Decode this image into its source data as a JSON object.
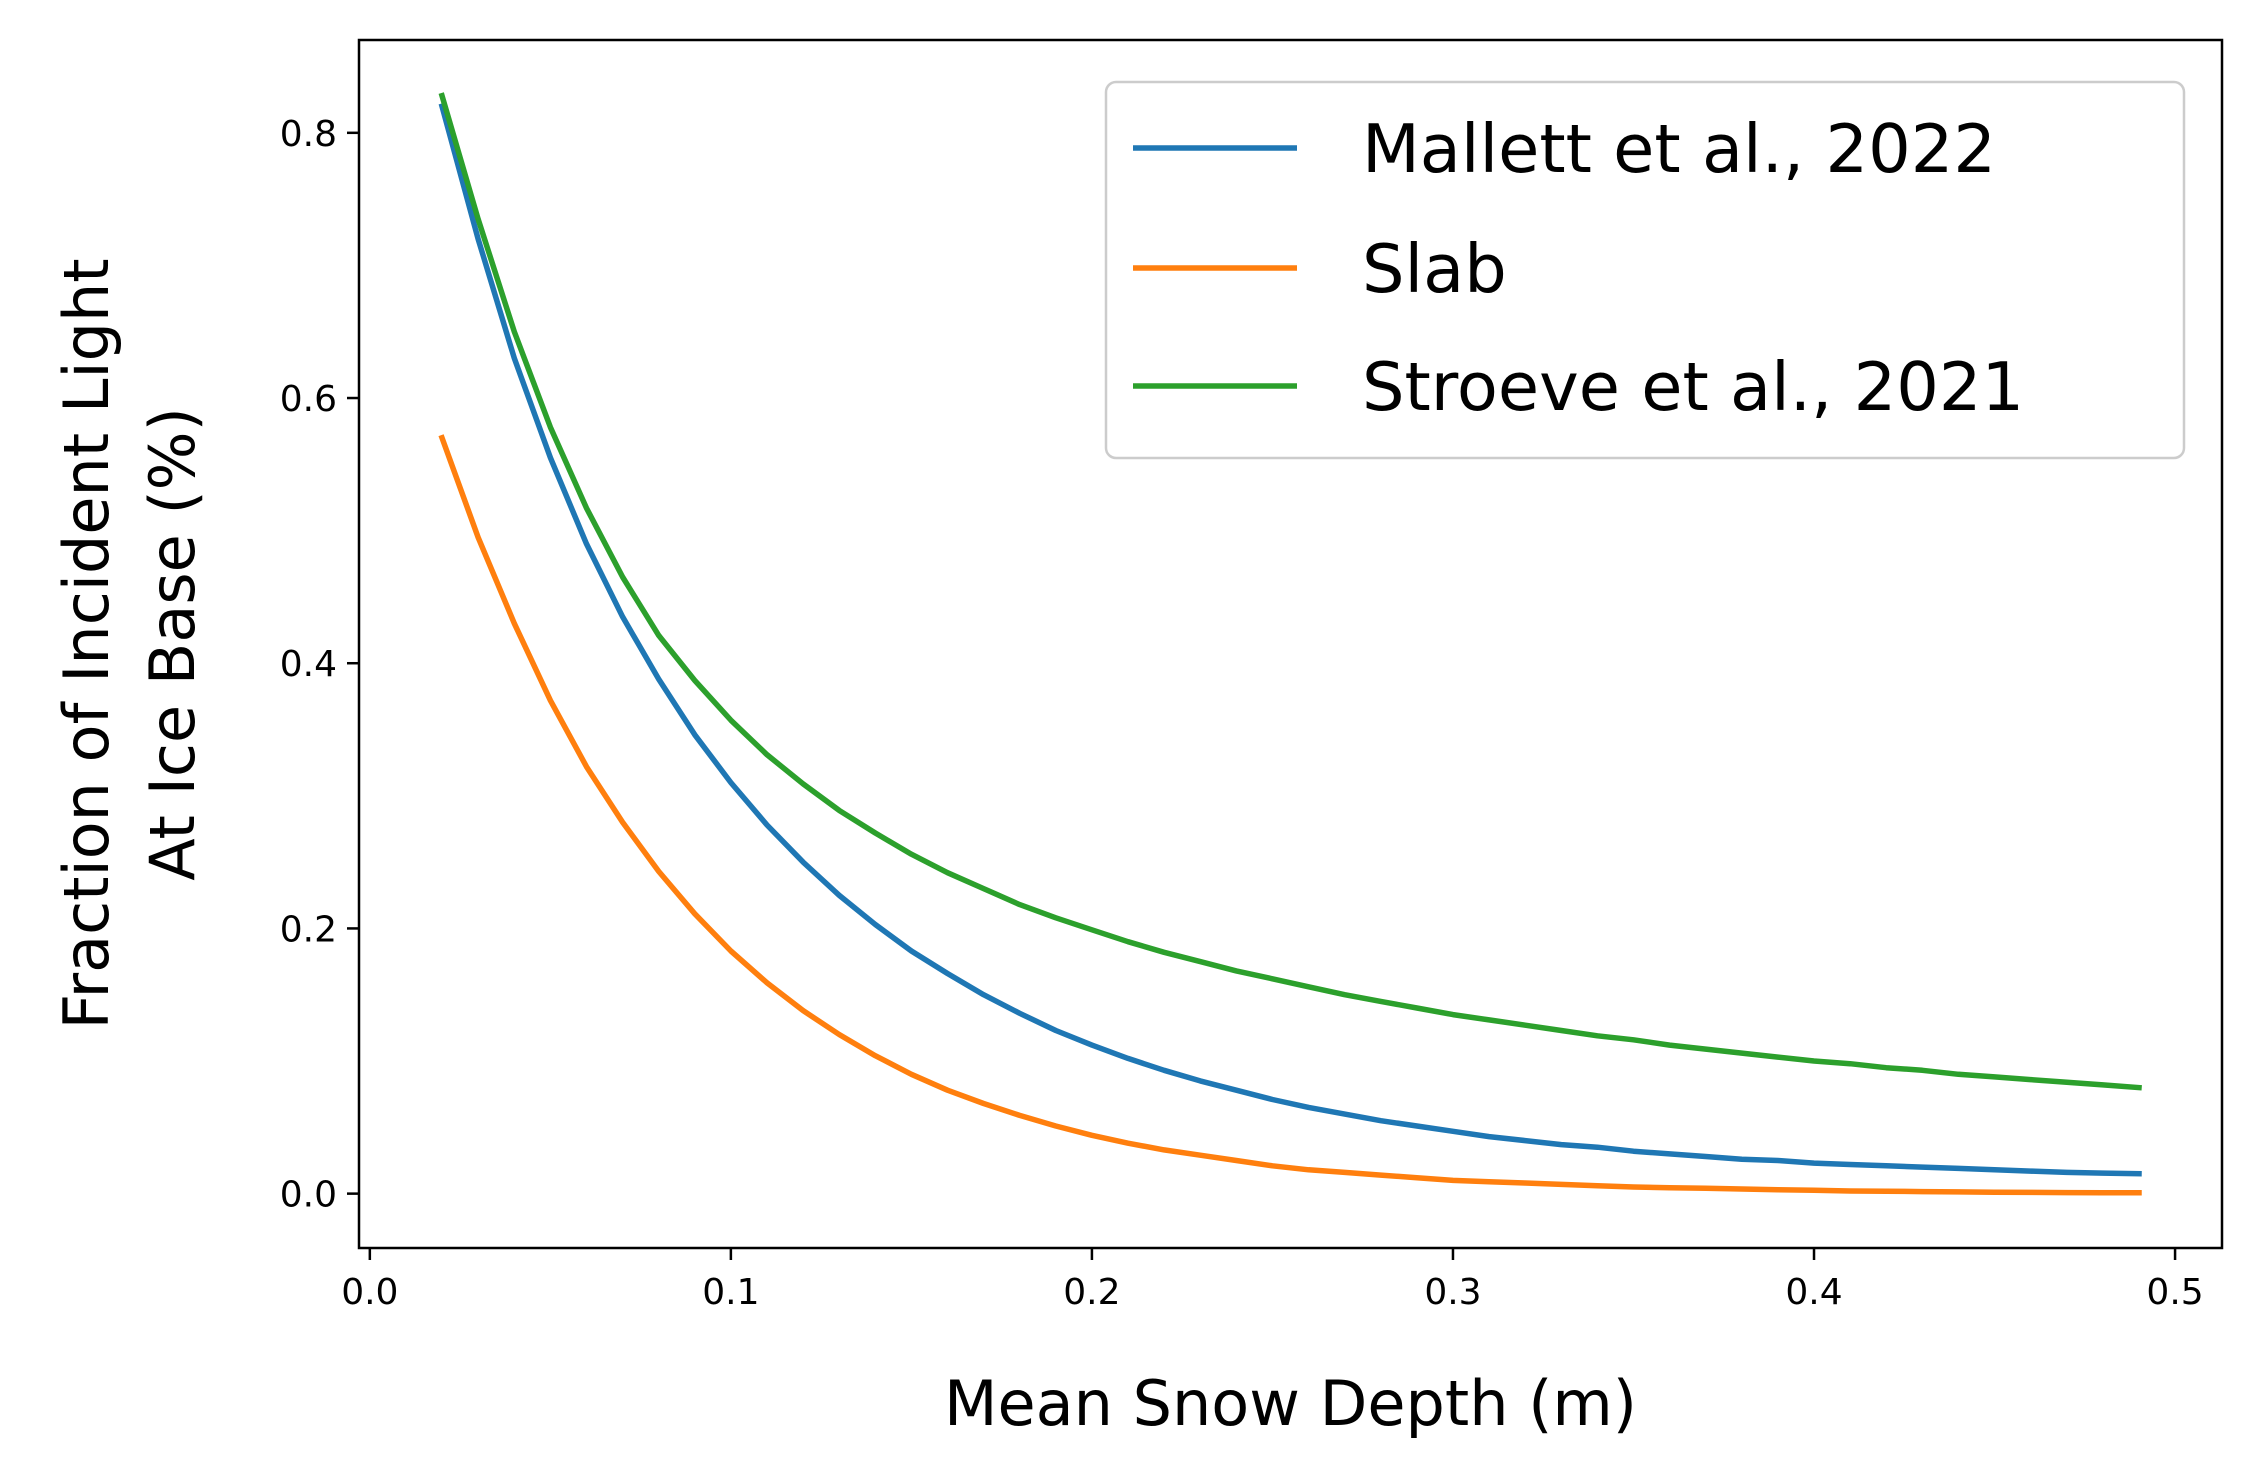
{
  "chart_data": {
    "type": "line",
    "title": "",
    "xlabel": "Mean Snow Depth (m)",
    "ylabel_lines": [
      "Fraction of Incident Light",
      "At Ice Base (%)"
    ],
    "xlim": [
      -0.003,
      0.513
    ],
    "ylim": [
      -0.041,
      0.87
    ],
    "xticks": [
      0.0,
      0.1,
      0.2,
      0.3,
      0.4,
      0.5
    ],
    "xtick_labels": [
      "0.0",
      "0.1",
      "0.2",
      "0.3",
      "0.4",
      "0.5"
    ],
    "yticks": [
      0.0,
      0.2,
      0.4,
      0.6,
      0.8
    ],
    "ytick_labels": [
      "0.0",
      "0.2",
      "0.4",
      "0.6",
      "0.8"
    ],
    "grid": false,
    "legend_position": "top-right",
    "x": [
      0.02,
      0.03,
      0.04,
      0.05,
      0.06,
      0.07,
      0.08,
      0.09,
      0.1,
      0.11,
      0.12,
      0.13,
      0.14,
      0.15,
      0.16,
      0.17,
      0.18,
      0.19,
      0.2,
      0.21,
      0.22,
      0.23,
      0.24,
      0.25,
      0.26,
      0.27,
      0.28,
      0.29,
      0.3,
      0.31,
      0.32,
      0.33,
      0.34,
      0.35,
      0.36,
      0.37,
      0.38,
      0.39,
      0.4,
      0.41,
      0.42,
      0.43,
      0.44,
      0.45,
      0.46,
      0.47,
      0.48,
      0.49
    ],
    "series": [
      {
        "name": "Mallett et al., 2022",
        "color": "#1f77b4",
        "values": [
          0.82,
          0.72,
          0.63,
          0.555,
          0.49,
          0.435,
          0.388,
          0.346,
          0.31,
          0.278,
          0.25,
          0.225,
          0.203,
          0.183,
          0.166,
          0.15,
          0.136,
          0.123,
          0.112,
          0.102,
          0.093,
          0.085,
          0.078,
          0.071,
          0.065,
          0.06,
          0.055,
          0.051,
          0.047,
          0.043,
          0.04,
          0.037,
          0.035,
          0.032,
          0.03,
          0.028,
          0.026,
          0.025,
          0.023,
          0.022,
          0.021,
          0.02,
          0.019,
          0.018,
          0.017,
          0.016,
          0.0155,
          0.015
        ]
      },
      {
        "name": "Slab",
        "color": "#ff7f0e",
        "values": [
          0.57,
          0.495,
          0.43,
          0.372,
          0.322,
          0.28,
          0.243,
          0.211,
          0.183,
          0.159,
          0.138,
          0.12,
          0.104,
          0.09,
          0.078,
          0.068,
          0.059,
          0.051,
          0.044,
          0.038,
          0.033,
          0.029,
          0.025,
          0.021,
          0.018,
          0.016,
          0.014,
          0.012,
          0.01,
          0.009,
          0.008,
          0.007,
          0.006,
          0.005,
          0.0045,
          0.004,
          0.0035,
          0.003,
          0.0025,
          0.002,
          0.0018,
          0.0015,
          0.0013,
          0.0011,
          0.0009,
          0.0008,
          0.0007,
          0.0006
        ]
      },
      {
        "name": "Stroeve et al., 2021",
        "color": "#2ca02c",
        "values": [
          0.828,
          0.735,
          0.65,
          0.578,
          0.517,
          0.465,
          0.421,
          0.387,
          0.357,
          0.331,
          0.309,
          0.289,
          0.272,
          0.256,
          0.242,
          0.23,
          0.218,
          0.208,
          0.199,
          0.19,
          0.182,
          0.175,
          0.168,
          0.162,
          0.156,
          0.15,
          0.145,
          0.14,
          0.135,
          0.131,
          0.127,
          0.123,
          0.119,
          0.116,
          0.112,
          0.109,
          0.106,
          0.103,
          0.1,
          0.098,
          0.095,
          0.093,
          0.09,
          0.088,
          0.086,
          0.084,
          0.082,
          0.08
        ]
      }
    ]
  }
}
